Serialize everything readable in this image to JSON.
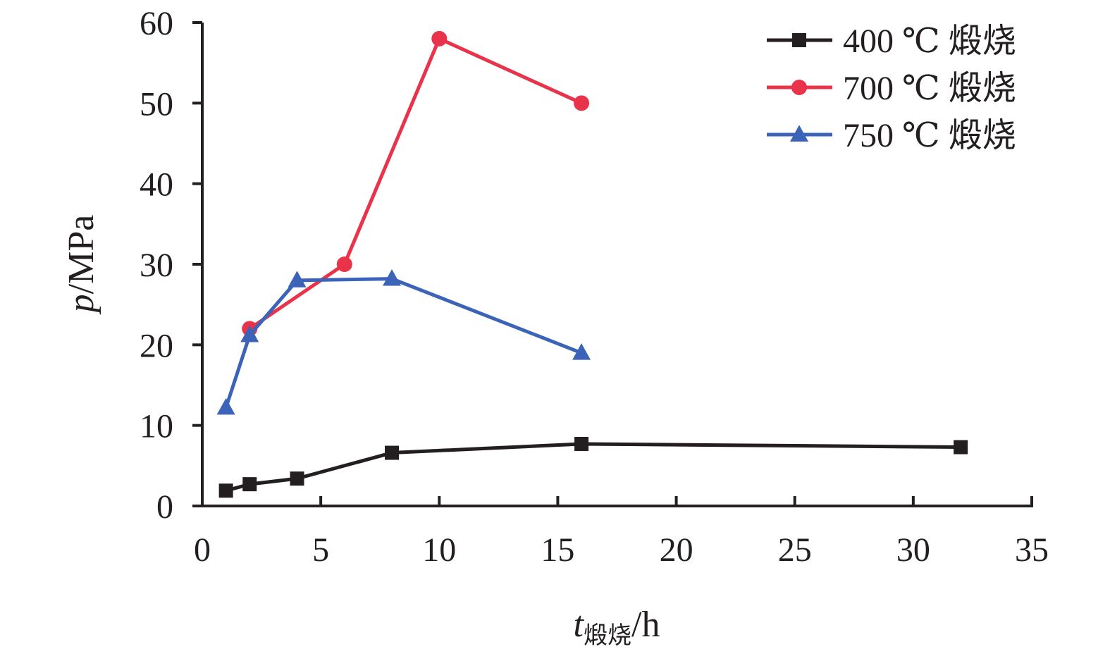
{
  "chart_data": {
    "type": "line",
    "xlabel": {
      "var": "t",
      "sub": "煅烧",
      "unit": "/h"
    },
    "ylabel": {
      "var": "p",
      "unit": "/MPa"
    },
    "xlim": [
      0,
      35
    ],
    "ylim": [
      0,
      60
    ],
    "xticks": [
      0,
      5,
      10,
      15,
      20,
      25,
      30,
      35
    ],
    "yticks": [
      0,
      10,
      20,
      30,
      40,
      50,
      60
    ],
    "grid": false,
    "legend": "top-right",
    "series": [
      {
        "name": "400 ℃ 煅烧",
        "color": "#231f20",
        "marker": "square",
        "x": [
          1,
          2,
          4,
          8,
          16,
          32
        ],
        "y": [
          1.9,
          2.7,
          3.4,
          6.6,
          7.7,
          7.3
        ]
      },
      {
        "name": "700 ℃ 煅烧",
        "color": "#e8334a",
        "marker": "circle",
        "x": [
          2,
          6,
          10,
          16
        ],
        "y": [
          22,
          30,
          58,
          50
        ]
      },
      {
        "name": "750 ℃ 煅烧",
        "color": "#3b63b8",
        "marker": "triangle",
        "x": [
          1,
          2,
          4,
          8,
          16
        ],
        "y": [
          12.2,
          21.2,
          28,
          28.2,
          19
        ]
      }
    ]
  }
}
